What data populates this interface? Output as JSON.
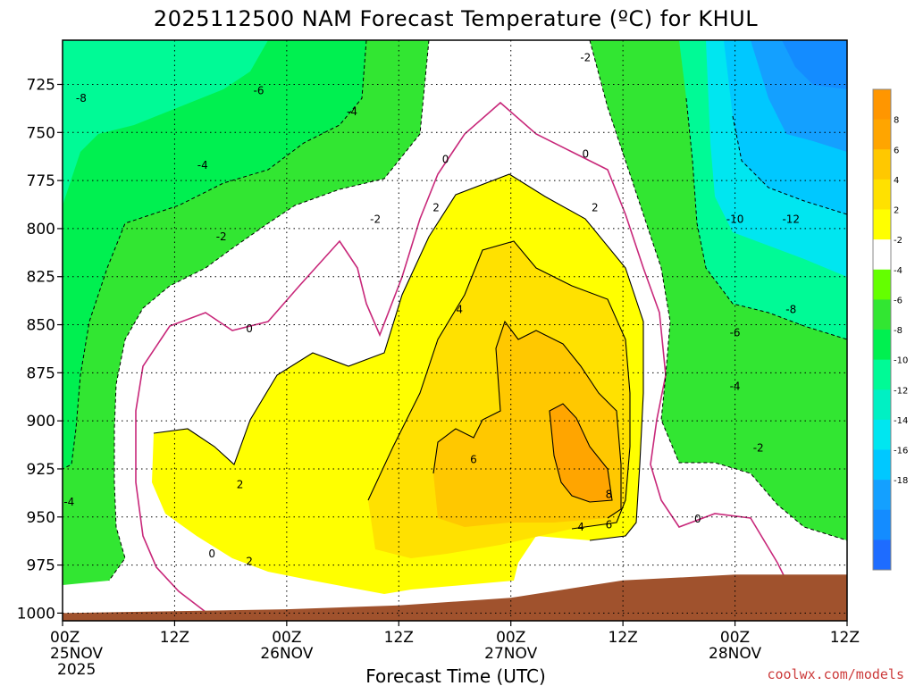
{
  "chart_data": {
    "type": "heatmap",
    "title": "2025112500 NAM Forecast Temperature (ºC) for KHUL",
    "xlabel": "Forecast Time (UTC)",
    "credit": "coolwx.com/models",
    "x_ticks": [
      {
        "hour": 0,
        "label": "00Z",
        "day": "25NOV",
        "year": "2025"
      },
      {
        "hour": 12,
        "label": "12Z"
      },
      {
        "hour": 24,
        "label": "00Z",
        "day": "26NOV"
      },
      {
        "hour": 36,
        "label": "12Z"
      },
      {
        "hour": 48,
        "label": "00Z",
        "day": "27NOV"
      },
      {
        "hour": 60,
        "label": "12Z"
      },
      {
        "hour": 72,
        "label": "00Z",
        "day": "28NOV"
      },
      {
        "hour": 84,
        "label": "12Z"
      }
    ],
    "xlim_hours": [
      0,
      84
    ],
    "y_ticks": [
      725,
      750,
      775,
      800,
      825,
      850,
      875,
      900,
      925,
      950,
      975,
      1000
    ],
    "ylim_hPa": [
      1004,
      702
    ],
    "grid": true,
    "colorbar": {
      "position": "right",
      "levels": [
        -20,
        -18,
        -16,
        -14,
        -12,
        -10,
        -8,
        -6,
        -4,
        -2,
        2,
        4,
        6,
        8,
        10
      ],
      "labels": [
        "8",
        "6",
        "4",
        "2",
        "-2",
        "-4",
        "-6",
        "-8",
        "-10",
        "-12",
        "-14",
        "-16",
        "-18"
      ],
      "colors": [
        "#1e6cff",
        "#148cff",
        "#14a0ff",
        "#00c8ff",
        "#00e6f0",
        "#00f0c3",
        "#00fa96",
        "#00f050",
        "#32e632",
        "#64ff00",
        "#ffffff",
        "#ffff00",
        "#ffe100",
        "#ffc800",
        "#ffa500",
        "#ff9600"
      ]
    },
    "terrain_color": "#a0522d",
    "surface_pressure_hPa": [
      [
        0,
        1000
      ],
      [
        12,
        999
      ],
      [
        24,
        998
      ],
      [
        36,
        996
      ],
      [
        48,
        992
      ],
      [
        60,
        983
      ],
      [
        72,
        980
      ],
      [
        84,
        980
      ]
    ],
    "contour_labels": [
      {
        "hour": 2,
        "hPa": 734,
        "text": "-8"
      },
      {
        "hour": 21,
        "hPa": 730,
        "text": "-6"
      },
      {
        "hour": 31,
        "hPa": 741,
        "text": "-4"
      },
      {
        "hour": 15,
        "hPa": 769,
        "text": "-4"
      },
      {
        "hour": 17,
        "hPa": 806,
        "text": "-2"
      },
      {
        "hour": 33.5,
        "hPa": 797,
        "text": "-2"
      },
      {
        "hour": 56,
        "hPa": 713,
        "text": "-2"
      },
      {
        "hour": 41,
        "hPa": 766,
        "text": "0"
      },
      {
        "hour": 56,
        "hPa": 763,
        "text": "0"
      },
      {
        "hour": 20,
        "hPa": 854,
        "text": "0"
      },
      {
        "hour": 16,
        "hPa": 971,
        "text": "0"
      },
      {
        "hour": 68,
        "hPa": 953,
        "text": "0"
      },
      {
        "hour": 40,
        "hPa": 791,
        "text": "2"
      },
      {
        "hour": 57,
        "hPa": 791,
        "text": "2"
      },
      {
        "hour": 19,
        "hPa": 935,
        "text": "2"
      },
      {
        "hour": 20,
        "hPa": 975,
        "text": "2"
      },
      {
        "hour": 42.5,
        "hPa": 844,
        "text": "4"
      },
      {
        "hour": 55.5,
        "hPa": 957,
        "text": "4"
      },
      {
        "hour": 44,
        "hPa": 922,
        "text": "6"
      },
      {
        "hour": 58.5,
        "hPa": 956,
        "text": "6"
      },
      {
        "hour": 58.5,
        "hPa": 940,
        "text": "8"
      },
      {
        "hour": 72,
        "hPa": 797,
        "text": "-10"
      },
      {
        "hour": 78,
        "hPa": 797,
        "text": "-12"
      },
      {
        "hour": 78,
        "hPa": 844,
        "text": "-8"
      },
      {
        "hour": 72,
        "hPa": 856,
        "text": "-6"
      },
      {
        "hour": 72,
        "hPa": 884,
        "text": "-4"
      },
      {
        "hour": 74.5,
        "hPa": 916,
        "text": "-2"
      },
      {
        "hour": 0.7,
        "hPa": 944,
        "text": "-4"
      }
    ]
  }
}
